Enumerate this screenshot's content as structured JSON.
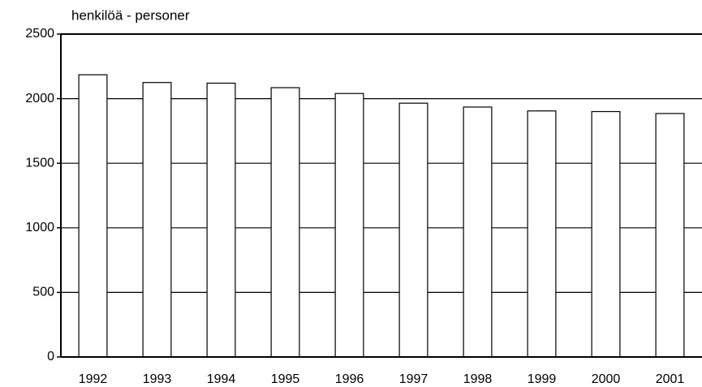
{
  "chart_data": {
    "type": "bar",
    "y_label": "henkilöä - personer",
    "categories": [
      "1992",
      "1993",
      "1994",
      "1995",
      "1996",
      "1997",
      "1998",
      "1999",
      "2000",
      "2001"
    ],
    "values": [
      2185,
      2125,
      2120,
      2085,
      2040,
      1965,
      1935,
      1905,
      1900,
      1885
    ],
    "color": "#ffffff",
    "ylim": [
      0,
      2500
    ],
    "yticks": [
      0,
      500,
      1000,
      1500,
      2000,
      2500
    ],
    "grid": true
  }
}
